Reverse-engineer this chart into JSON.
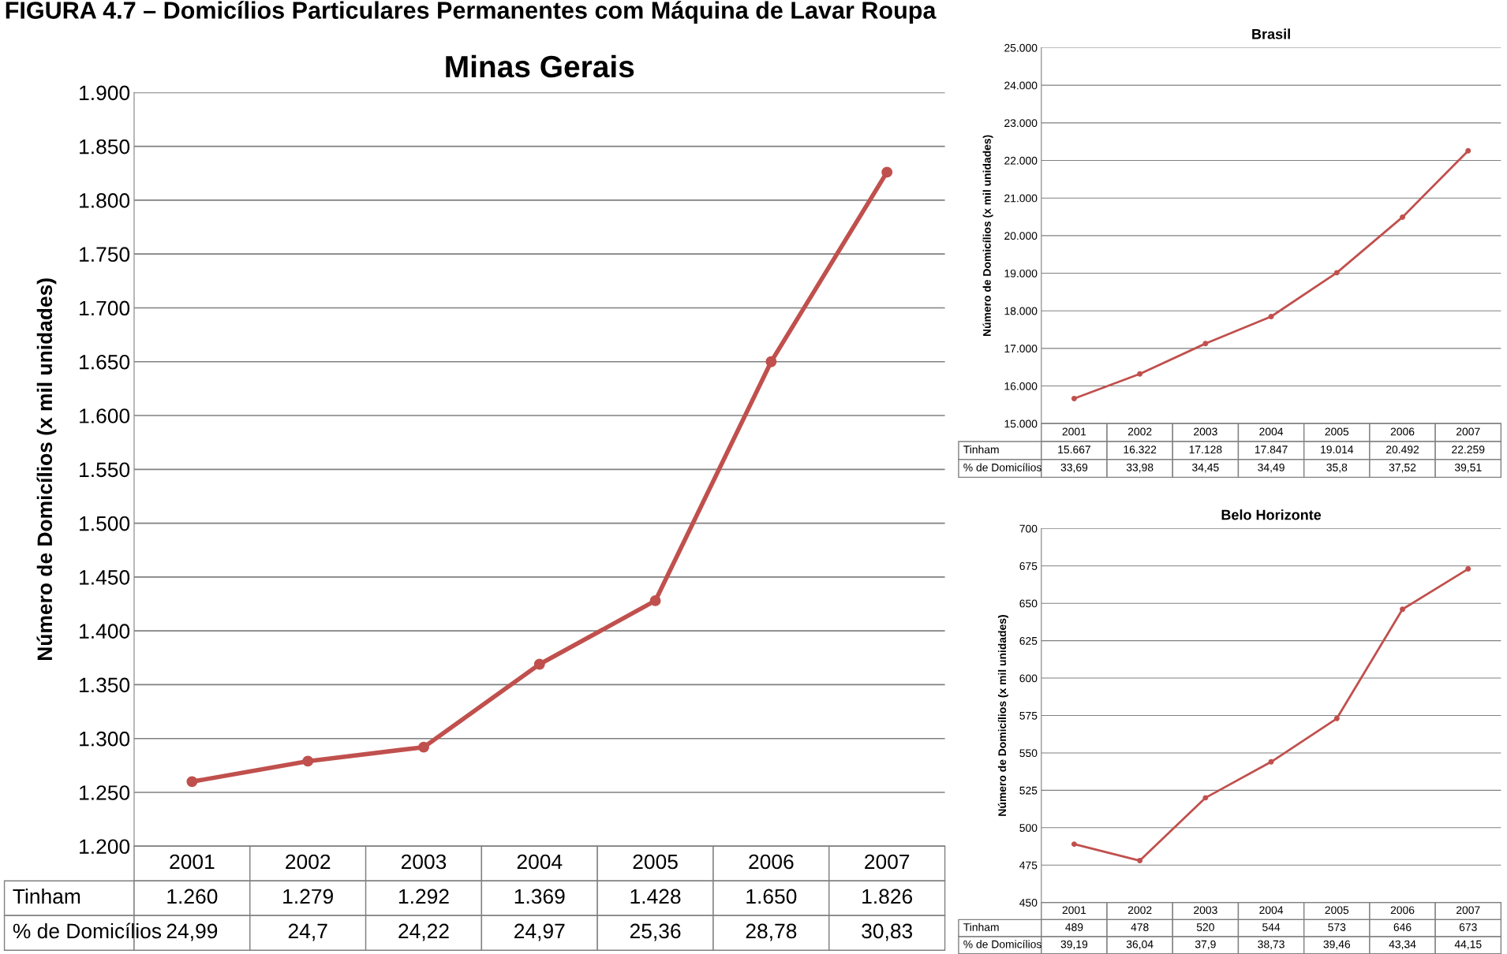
{
  "chart_data": [
    {
      "type": "line",
      "title": "Minas Gerais",
      "ylabel": "Número de Domicílios (x mil unidades)",
      "annotations": [
        "FIGURA 4.7 – Domicílios Particulares Permanentes com Máquina de Lavar Roupa"
      ],
      "categories": [
        "2001",
        "2002",
        "2003",
        "2004",
        "2005",
        "2006",
        "2007"
      ],
      "series": [
        {
          "name": "Tinham",
          "color": "#c0504d",
          "values": [
            1260,
            1279,
            1292,
            1369,
            1428,
            1650,
            1826
          ],
          "value_labels": [
            "1.260",
            "1.279",
            "1.292",
            "1.369",
            "1.428",
            "1.650",
            "1.826"
          ]
        },
        {
          "name": "% de Domicílios",
          "values": [
            null,
            null,
            null,
            null,
            null,
            null,
            null
          ],
          "value_labels": [
            "24,99",
            "24,7",
            "24,22",
            "24,97",
            "25,36",
            "28,78",
            "30,83"
          ]
        }
      ],
      "ylim": [
        1200,
        1900
      ],
      "yticks": [
        {
          "value": 1200,
          "label": "1.200"
        },
        {
          "value": 1250,
          "label": "1.250"
        },
        {
          "value": 1300,
          "label": "1.300"
        },
        {
          "value": 1350,
          "label": "1.350"
        },
        {
          "value": 1400,
          "label": "1.400"
        },
        {
          "value": 1450,
          "label": "1.450"
        },
        {
          "value": 1500,
          "label": "1.500"
        },
        {
          "value": 1550,
          "label": "1.550"
        },
        {
          "value": 1600,
          "label": "1.600"
        },
        {
          "value": 1650,
          "label": "1.650"
        },
        {
          "value": 1700,
          "label": "1.700"
        },
        {
          "value": 1750,
          "label": "1.750"
        },
        {
          "value": 1800,
          "label": "1.800"
        },
        {
          "value": 1850,
          "label": "1.850"
        },
        {
          "value": 1900,
          "label": "1.900"
        }
      ],
      "grid": "y",
      "marker": "circle",
      "line_style": "solid",
      "legend": false
    },
    {
      "type": "line",
      "title": "Brasil",
      "ylabel": "Número de Domicílios (x mil unidades)",
      "categories": [
        "2001",
        "2002",
        "2003",
        "2004",
        "2005",
        "2006",
        "2007"
      ],
      "series": [
        {
          "name": "Tinham",
          "color": "#c0504d",
          "values": [
            15667,
            16322,
            17128,
            17847,
            19014,
            20492,
            22259
          ],
          "value_labels": [
            "15.667",
            "16.322",
            "17.128",
            "17.847",
            "19.014",
            "20.492",
            "22.259"
          ]
        },
        {
          "name": "% de Domicílios",
          "values": [
            null,
            null,
            null,
            null,
            null,
            null,
            null
          ],
          "value_labels": [
            "33,69",
            "33,98",
            "34,45",
            "34,49",
            "35,8",
            "37,52",
            "39,51"
          ]
        }
      ],
      "ylim": [
        15000,
        25000
      ],
      "yticks": [
        {
          "value": 15000,
          "label": "15.000"
        },
        {
          "value": 16000,
          "label": "16.000"
        },
        {
          "value": 17000,
          "label": "17.000"
        },
        {
          "value": 18000,
          "label": "18.000"
        },
        {
          "value": 19000,
          "label": "19.000"
        },
        {
          "value": 20000,
          "label": "20.000"
        },
        {
          "value": 21000,
          "label": "21.000"
        },
        {
          "value": 22000,
          "label": "22.000"
        },
        {
          "value": 23000,
          "label": "23.000"
        },
        {
          "value": 24000,
          "label": "24.000"
        },
        {
          "value": 25000,
          "label": "25.000"
        }
      ],
      "grid": "y",
      "marker": "circle",
      "line_style": "solid",
      "legend": false
    },
    {
      "type": "line",
      "title": "Belo Horizonte",
      "ylabel": "Número de Domicílios (x mil unidades)",
      "categories": [
        "2001",
        "2002",
        "2003",
        "2004",
        "2005",
        "2006",
        "2007"
      ],
      "series": [
        {
          "name": "Tinham",
          "color": "#c0504d",
          "values": [
            489,
            478,
            520,
            544,
            573,
            646,
            673
          ],
          "value_labels": [
            "489",
            "478",
            "520",
            "544",
            "573",
            "646",
            "673"
          ]
        },
        {
          "name": "% de Domicílios",
          "values": [
            null,
            null,
            null,
            null,
            null,
            null,
            null
          ],
          "value_labels": [
            "39,19",
            "36,04",
            "37,9",
            "38,73",
            "39,46",
            "43,34",
            "44,15"
          ]
        }
      ],
      "ylim": [
        450,
        700
      ],
      "yticks": [
        450,
        475,
        500,
        525,
        550,
        575,
        600,
        625,
        650,
        675,
        700
      ],
      "grid": "y",
      "marker": "circle",
      "line_style": "solid",
      "legend": false
    }
  ]
}
